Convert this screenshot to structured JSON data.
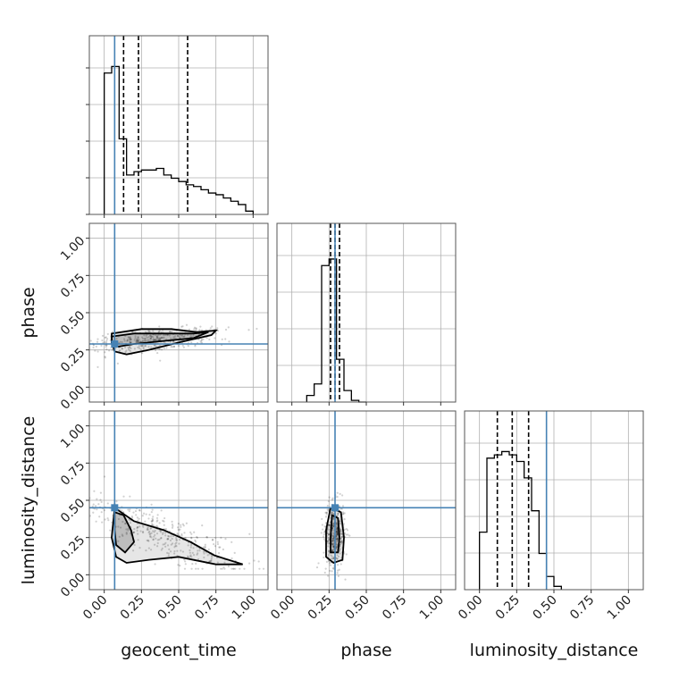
{
  "chart_data": {
    "type": "corner",
    "parameters": [
      "geocent_time",
      "phase",
      "luminosity_distance"
    ],
    "axis_labels": {
      "bottom": [
        "geocent_time",
        "phase",
        "luminosity_distance"
      ],
      "left": [
        "phase",
        "luminosity_distance"
      ]
    },
    "tick_labels": [
      "0.00",
      "0.25",
      "0.50",
      "0.75",
      "1.00"
    ],
    "truths": {
      "geocent_time": 0.07,
      "phase": 0.29,
      "luminosity_distance": 0.45
    },
    "truth_color": "#4682b4",
    "ranges": {
      "geocent_time": [
        -0.1,
        1.1
      ],
      "phase": [
        -0.1,
        1.1
      ],
      "luminosity_distance": [
        -0.1,
        1.1
      ]
    },
    "grid": true,
    "histograms": [
      {
        "parameter": "geocent_time",
        "bin_edges": [
          0.0,
          0.05,
          0.1,
          0.15,
          0.2,
          0.25,
          0.3,
          0.35,
          0.4,
          0.45,
          0.5,
          0.55,
          0.6,
          0.65,
          0.7,
          0.75,
          0.8,
          0.85,
          0.9,
          0.95,
          1.0
        ],
        "counts": [
          0.86,
          0.9,
          0.46,
          0.24,
          0.26,
          0.27,
          0.27,
          0.28,
          0.24,
          0.22,
          0.2,
          0.18,
          0.17,
          0.15,
          0.13,
          0.12,
          0.1,
          0.08,
          0.06,
          0.02
        ],
        "quantiles": [
          0.13,
          0.23,
          0.56
        ]
      },
      {
        "parameter": "phase",
        "bin_edges": [
          0.1,
          0.15,
          0.2,
          0.25,
          0.3,
          0.35,
          0.4,
          0.45,
          0.5
        ],
        "counts": [
          0.04,
          0.11,
          0.83,
          0.87,
          0.26,
          0.07,
          0.01,
          0.0
        ],
        "quantiles": [
          0.26,
          0.29,
          0.32
        ]
      },
      {
        "parameter": "luminosity_distance",
        "bin_edges": [
          0.0,
          0.05,
          0.1,
          0.15,
          0.2,
          0.25,
          0.3,
          0.35,
          0.4,
          0.45,
          0.5,
          0.55
        ],
        "counts": [
          0.35,
          0.8,
          0.82,
          0.84,
          0.82,
          0.78,
          0.68,
          0.48,
          0.22,
          0.08,
          0.02
        ],
        "quantiles": [
          0.12,
          0.22,
          0.33
        ]
      }
    ],
    "pair_plots": [
      {
        "x": "geocent_time",
        "y": "phase",
        "contours": [
          [
            [
              0.05,
              0.34
            ],
            [
              0.2,
              0.36
            ],
            [
              0.4,
              0.36
            ],
            [
              0.6,
              0.36
            ],
            [
              0.7,
              0.37
            ],
            [
              0.6,
              0.33
            ],
            [
              0.4,
              0.31
            ],
            [
              0.2,
              0.29
            ],
            [
              0.08,
              0.27
            ],
            [
              0.05,
              0.29
            ],
            [
              0.05,
              0.34
            ]
          ],
          [
            [
              0.05,
              0.36
            ],
            [
              0.25,
              0.39
            ],
            [
              0.45,
              0.39
            ],
            [
              0.62,
              0.37
            ],
            [
              0.75,
              0.38
            ],
            [
              0.72,
              0.35
            ],
            [
              0.5,
              0.3
            ],
            [
              0.3,
              0.25
            ],
            [
              0.15,
              0.22
            ],
            [
              0.07,
              0.24
            ],
            [
              0.05,
              0.3
            ],
            [
              0.05,
              0.36
            ]
          ]
        ]
      },
      {
        "x": "geocent_time",
        "y": "luminosity_distance",
        "contours": [
          [
            [
              0.07,
              0.42
            ],
            [
              0.13,
              0.4
            ],
            [
              0.18,
              0.3
            ],
            [
              0.2,
              0.22
            ],
            [
              0.14,
              0.15
            ],
            [
              0.08,
              0.2
            ],
            [
              0.07,
              0.3
            ],
            [
              0.07,
              0.42
            ]
          ],
          [
            [
              0.07,
              0.45
            ],
            [
              0.2,
              0.36
            ],
            [
              0.4,
              0.3
            ],
            [
              0.58,
              0.22
            ],
            [
              0.74,
              0.13
            ],
            [
              0.93,
              0.07
            ],
            [
              0.75,
              0.07
            ],
            [
              0.5,
              0.12
            ],
            [
              0.3,
              0.1
            ],
            [
              0.15,
              0.08
            ],
            [
              0.08,
              0.12
            ],
            [
              0.05,
              0.25
            ],
            [
              0.07,
              0.45
            ]
          ]
        ]
      },
      {
        "x": "phase",
        "y": "luminosity_distance",
        "contours": [
          [
            [
              0.27,
              0.4
            ],
            [
              0.31,
              0.38
            ],
            [
              0.32,
              0.25
            ],
            [
              0.31,
              0.15
            ],
            [
              0.26,
              0.15
            ],
            [
              0.26,
              0.25
            ],
            [
              0.27,
              0.4
            ]
          ],
          [
            [
              0.26,
              0.45
            ],
            [
              0.33,
              0.42
            ],
            [
              0.35,
              0.25
            ],
            [
              0.34,
              0.1
            ],
            [
              0.28,
              0.08
            ],
            [
              0.23,
              0.12
            ],
            [
              0.23,
              0.3
            ],
            [
              0.26,
              0.45
            ]
          ]
        ]
      }
    ]
  }
}
